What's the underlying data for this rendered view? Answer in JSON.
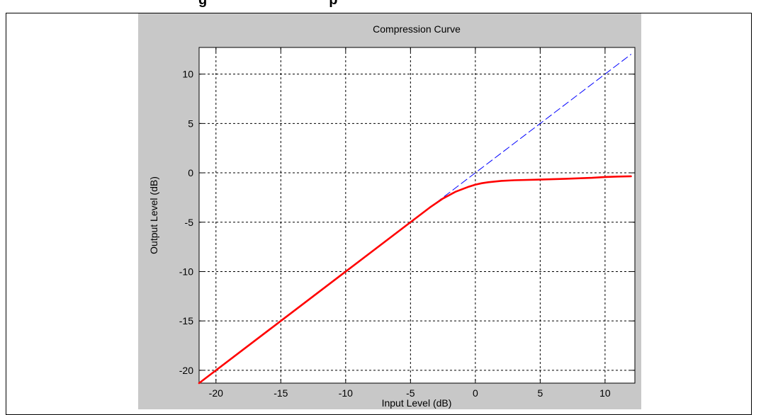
{
  "page": {
    "heading_left": "g",
    "heading_right": "p"
  },
  "chart_data": {
    "type": "line",
    "title": "Compression Curve",
    "xlabel": "Input Level (dB)",
    "ylabel": "Output Level (dB)",
    "xlim": [
      -21.3,
      12.3
    ],
    "ylim": [
      -21.3,
      12.7
    ],
    "xticks": [
      -20,
      -15,
      -10,
      -5,
      0,
      5,
      10
    ],
    "yticks": [
      -20,
      -15,
      -10,
      -5,
      0,
      5,
      10
    ],
    "grid": true,
    "series": [
      {
        "color": "#0000ff",
        "style": "dashed",
        "x": [
          -21.3,
          12.0
        ],
        "y": [
          -21.3,
          12.0
        ]
      },
      {
        "color": "#ff0000",
        "style": "solid",
        "x": [
          -21.3,
          -15,
          -10,
          -5,
          -3.5,
          -2.5,
          -1.5,
          -0.5,
          0,
          0.5,
          1,
          2,
          3,
          5,
          7,
          9,
          10,
          11,
          12
        ],
        "y": [
          -21.3,
          -15,
          -10,
          -5,
          -3.5,
          -2.6,
          -1.9,
          -1.4,
          -1.2,
          -1.05,
          -0.95,
          -0.82,
          -0.75,
          -0.68,
          -0.6,
          -0.5,
          -0.42,
          -0.38,
          -0.35
        ]
      }
    ]
  }
}
